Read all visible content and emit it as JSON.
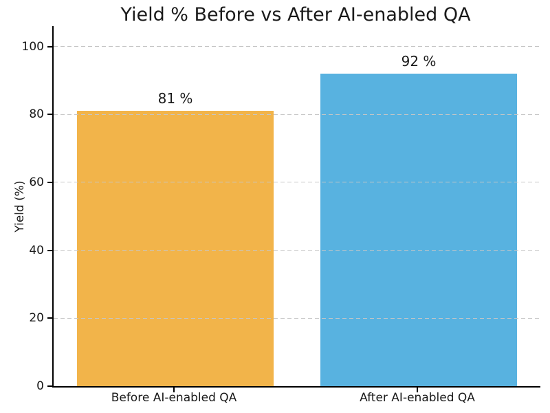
{
  "chart_data": {
    "type": "bar",
    "title": "Yield % Before vs After AI-enabled QA",
    "ylabel": "Yield (%)",
    "xlabel": "",
    "categories": [
      "Before AI-enabled QA",
      "After AI-enabled QA"
    ],
    "values": [
      81,
      92
    ],
    "bar_labels": [
      "81 %",
      "92 %"
    ],
    "bar_colors": [
      "#f2b44a",
      "#58b2e0"
    ],
    "yticks": [
      0,
      20,
      40,
      60,
      80,
      100
    ],
    "ylim": [
      0,
      106
    ],
    "grid": "horizontal dashed, drawn over bars",
    "gridline_color": "#c6c6c6",
    "legend": "none",
    "background_color": "#ffffff",
    "text_color": "#1a1a1a"
  }
}
